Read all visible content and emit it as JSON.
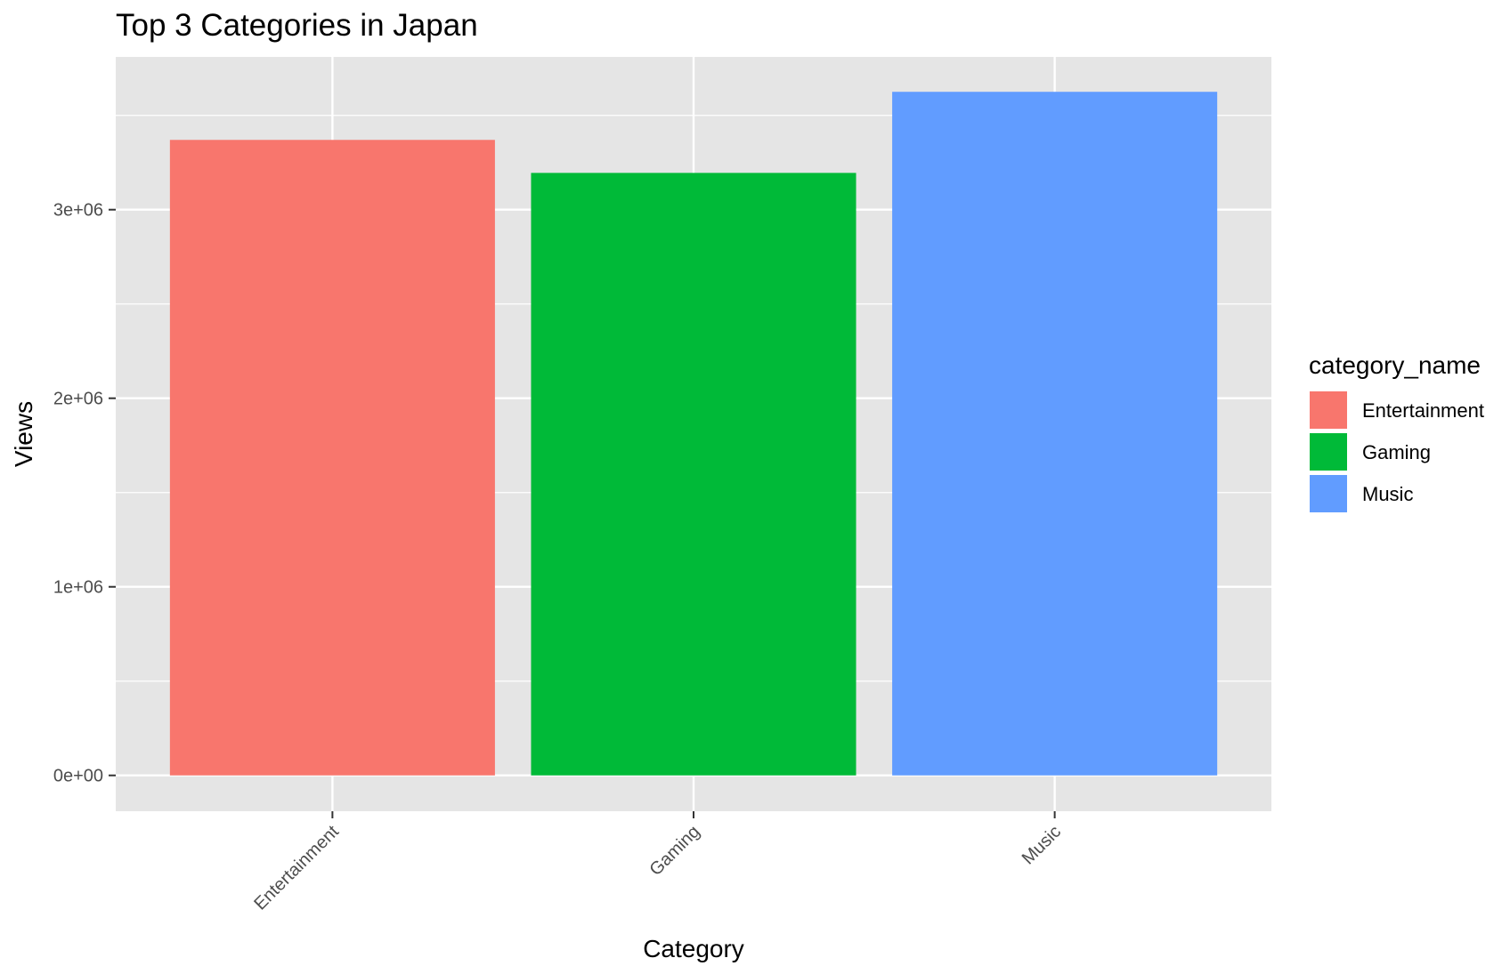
{
  "chart_data": {
    "type": "bar",
    "title": "Top 3 Categories in Japan",
    "xlabel": "Category",
    "ylabel": "Views",
    "categories": [
      "Entertainment",
      "Gaming",
      "Music"
    ],
    "values": [
      3370000,
      3195000,
      3625000
    ],
    "ylim": [
      -190000,
      3810000
    ],
    "yticks": [
      0,
      1000000,
      2000000,
      3000000
    ],
    "ytick_labels": [
      "0e+00",
      "1e+06",
      "2e+06",
      "3e+06"
    ],
    "legend": {
      "title": "category_name",
      "position": "right",
      "entries": [
        "Entertainment",
        "Gaming",
        "Music"
      ]
    },
    "colors": {
      "Entertainment": "#F8766D",
      "Gaming": "#00BA38",
      "Music": "#619CFF",
      "panel_background": "#E5E5E5",
      "grid": "#FFFFFF"
    },
    "grid": true
  }
}
